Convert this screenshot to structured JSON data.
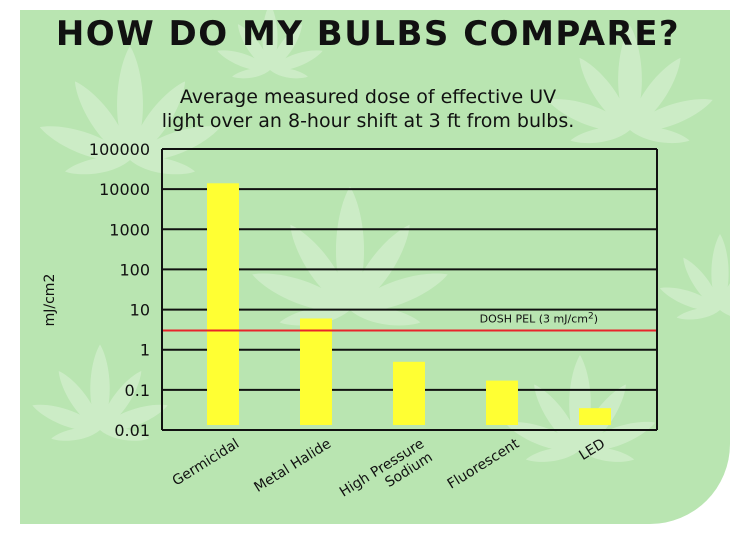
{
  "header": {
    "title": "HOW DO MY BULBS COMPARE?",
    "subtitle_line1": "Average measured dose of effective UV",
    "subtitle_line2": "light over an 8-hour shift at 3 ft from bulbs."
  },
  "colors": {
    "card_background": "#b9e5b1",
    "bar": "#ffff33",
    "reference_line": "#e8242a",
    "grid": "#111111"
  },
  "chart_data": {
    "type": "bar",
    "scale": "log",
    "categories": [
      "Germicidal",
      "Metal Halide",
      "High Pressure Sodium",
      "Fluorescent",
      "LED"
    ],
    "values": [
      14000,
      6,
      0.5,
      0.17,
      0.035
    ],
    "ylabel": "mJ/cm2",
    "ylim": [
      0.01,
      100000
    ],
    "yticks": [
      "100000",
      "10000",
      "1000",
      "100",
      "10",
      "1",
      "0.1",
      "0.01"
    ],
    "ytick_values": [
      100000,
      10000,
      1000,
      100,
      10,
      1,
      0.1,
      0.01
    ],
    "reference_line": {
      "label_main": "DOSH PEL (3 mJ/cm",
      "label_sup": "2",
      "label_end": ")",
      "value": 3
    },
    "grid": true
  }
}
